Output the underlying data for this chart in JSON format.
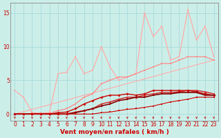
{
  "xlabel": "Vent moyen/en rafales ( km/h )",
  "background_color": "#cceee8",
  "grid_color": "#aadddd",
  "xlim": [
    -0.5,
    23.5
  ],
  "ylim": [
    -1.0,
    16.5
  ],
  "yticks": [
    0,
    5,
    10,
    15
  ],
  "xticks": [
    0,
    1,
    2,
    3,
    4,
    5,
    6,
    7,
    8,
    9,
    10,
    11,
    12,
    13,
    14,
    15,
    16,
    17,
    18,
    19,
    20,
    21,
    22,
    23
  ],
  "lines": [
    {
      "x": [
        0,
        23
      ],
      "y": [
        0,
        8.0
      ],
      "color": "#ffaaaa",
      "lw": 0.8,
      "marker": null,
      "ms": 0,
      "alpha": 1.0
    },
    {
      "x": [
        0,
        1,
        2,
        3,
        4,
        5,
        6,
        7,
        8,
        9,
        10,
        11,
        12,
        13,
        14,
        15,
        16,
        17,
        18,
        19,
        20,
        21,
        22,
        23
      ],
      "y": [
        3.5,
        2.5,
        0.2,
        0.1,
        0.2,
        6.0,
        6.2,
        8.5,
        6.0,
        6.5,
        10.0,
        7.0,
        5.0,
        5.5,
        6.0,
        15.0,
        11.5,
        13.0,
        8.0,
        8.5,
        15.5,
        11.0,
        13.0,
        8.5
      ],
      "color": "#ffaaaa",
      "lw": 0.9,
      "marker": "s",
      "ms": 2.0,
      "alpha": 1.0
    },
    {
      "x": [
        0,
        1,
        2,
        3,
        4,
        5,
        6,
        7,
        8,
        9,
        10,
        11,
        12,
        13,
        14,
        15,
        16,
        17,
        18,
        19,
        20,
        21,
        22,
        23
      ],
      "y": [
        0.0,
        0.0,
        0.1,
        0.1,
        0.1,
        0.5,
        0.8,
        1.5,
        2.5,
        3.0,
        4.5,
        5.0,
        5.5,
        5.5,
        6.0,
        6.5,
        7.0,
        7.5,
        7.5,
        8.0,
        8.5,
        8.5,
        8.5,
        8.0
      ],
      "color": "#ff8888",
      "lw": 0.9,
      "marker": "s",
      "ms": 2.0,
      "alpha": 1.0
    },
    {
      "x": [
        0,
        1,
        2,
        3,
        4,
        5,
        6,
        7,
        8,
        9,
        10,
        11,
        12,
        13,
        14,
        15,
        16,
        17,
        18,
        19,
        20,
        21,
        22,
        23
      ],
      "y": [
        0,
        0,
        0,
        0,
        0,
        0,
        0,
        0.3,
        0.5,
        0.8,
        1.5,
        1.8,
        2.2,
        2.5,
        2.5,
        2.8,
        3.0,
        3.2,
        3.2,
        3.3,
        3.5,
        3.5,
        3.3,
        3.0
      ],
      "color": "#cc2222",
      "lw": 1.0,
      "marker": "^",
      "ms": 2.5,
      "alpha": 1.0
    },
    {
      "x": [
        0,
        1,
        2,
        3,
        4,
        5,
        6,
        7,
        8,
        9,
        10,
        11,
        12,
        13,
        14,
        15,
        16,
        17,
        18,
        19,
        20,
        21,
        22,
        23
      ],
      "y": [
        0,
        0,
        0,
        0,
        0,
        0.2,
        0.3,
        0.8,
        1.5,
        2.0,
        2.5,
        2.8,
        2.8,
        3.0,
        2.8,
        3.0,
        3.5,
        3.5,
        3.5,
        3.5,
        3.5,
        3.3,
        3.0,
        2.8
      ],
      "color": "#cc0000",
      "lw": 1.0,
      "marker": "D",
      "ms": 2.0,
      "alpha": 1.0
    },
    {
      "x": [
        0,
        1,
        2,
        3,
        4,
        5,
        6,
        7,
        8,
        9,
        10,
        11,
        12,
        13,
        14,
        15,
        16,
        17,
        18,
        19,
        20,
        21,
        22,
        23
      ],
      "y": [
        0,
        0,
        0,
        0,
        0,
        0,
        0,
        0.2,
        0.5,
        0.8,
        1.2,
        1.5,
        2.0,
        2.2,
        2.5,
        2.5,
        2.8,
        3.0,
        3.0,
        3.2,
        3.2,
        3.2,
        2.8,
        2.8
      ],
      "color": "#880000",
      "lw": 1.2,
      "marker": "s",
      "ms": 2.0,
      "alpha": 1.0
    },
    {
      "x": [
        0,
        1,
        2,
        3,
        4,
        5,
        6,
        7,
        8,
        9,
        10,
        11,
        12,
        13,
        14,
        15,
        16,
        17,
        18,
        19,
        20,
        21,
        22,
        23
      ],
      "y": [
        0,
        0,
        0,
        0,
        0,
        0,
        0,
        0,
        0,
        0,
        0.2,
        0.3,
        0.5,
        0.7,
        0.8,
        1.0,
        1.2,
        1.5,
        1.8,
        2.0,
        2.2,
        2.5,
        2.5,
        2.5
      ],
      "color": "#cc0000",
      "lw": 0.8,
      "marker": "s",
      "ms": 1.8,
      "alpha": 1.0
    }
  ],
  "tick_color": "#cc0000",
  "tick_fontsize": 5.5,
  "xlabel_fontsize": 6.5,
  "xlabel_fontweight": "bold"
}
